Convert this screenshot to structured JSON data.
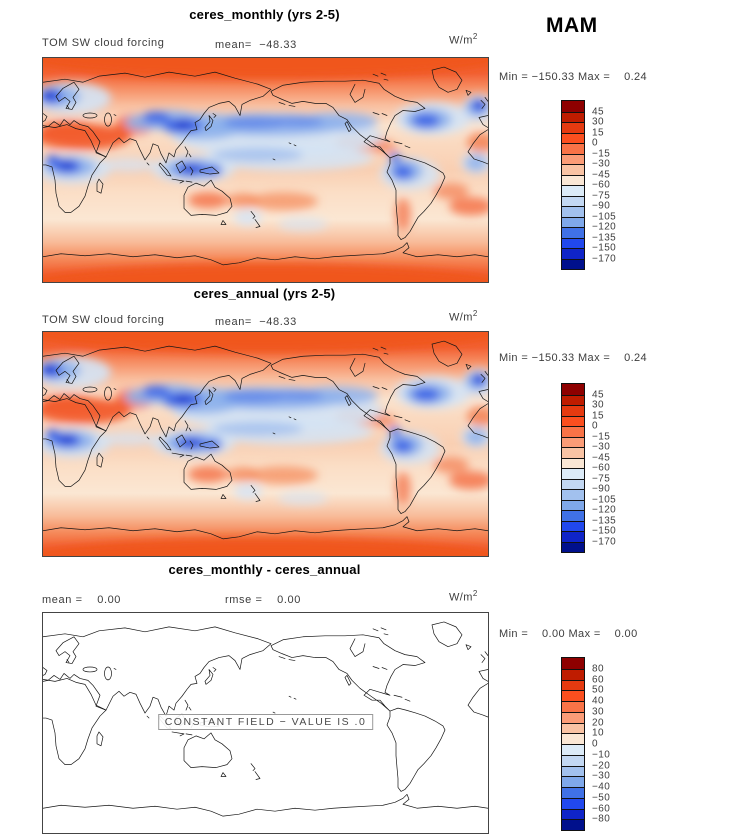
{
  "header": {
    "season": "MAM"
  },
  "units": {
    "base": "W/m",
    "exp": "2"
  },
  "palette": {
    "colors": [
      "#8e0000",
      "#bf1c00",
      "#e53a10",
      "#fb4f1f",
      "#f97347",
      "#fb9c77",
      "#f9c3a4",
      "#fae7d5",
      "#dcebf8",
      "#c3d8f3",
      "#a2c1ee",
      "#7fa8ea",
      "#4071e6",
      "#2148ee",
      "#0f24c8",
      "#00108c"
    ]
  },
  "panels": [
    {
      "title": "ceres_monthly (yrs 2-5)",
      "var_label": "TOM SW cloud forcing",
      "mean_text": "mean=  −48.33",
      "minmax": "Min = −150.33 Max =    0.24"
    },
    {
      "title": "ceres_annual (yrs 2-5)",
      "var_label": "TOM SW cloud forcing",
      "mean_text": "mean=  −48.33",
      "minmax": "Min = −150.33 Max =    0.24"
    },
    {
      "title": "ceres_monthly - ceres_annual",
      "mean_text": "mean =    0.00",
      "rmse_text": "rmse =    0.00",
      "minmax": "Min =    0.00 Max =    0.00",
      "note": "CONSTANT FIELD − VALUE IS .0"
    }
  ],
  "colorbars": [
    {
      "labels": [
        "45",
        "30",
        "15",
        "0",
        "−15",
        "−30",
        "−45",
        "−60",
        "−75",
        "−90",
        "−105",
        "−120",
        "−135",
        "−150",
        "−170"
      ]
    },
    {
      "labels": [
        "45",
        "30",
        "15",
        "0",
        "−15",
        "−30",
        "−45",
        "−60",
        "−75",
        "−90",
        "−105",
        "−120",
        "−135",
        "−150",
        "−170"
      ]
    },
    {
      "labels": [
        "80",
        "60",
        "50",
        "40",
        "30",
        "20",
        "10",
        "0",
        "−10",
        "−20",
        "−30",
        "−40",
        "−50",
        "−60",
        "−80"
      ]
    }
  ],
  "chart_data": [
    {
      "type": "heatmap",
      "title": "ceres_monthly (yrs 2-5)",
      "variable": "TOM SW cloud forcing",
      "season": "MAM",
      "units": "W/m^2",
      "projection": "global lat-lon map, Pacific-centered (0-360E)",
      "mean": -48.33,
      "min": -150.33,
      "max": 0.24,
      "contour_levels": [
        45,
        30,
        15,
        0,
        -15,
        -30,
        -45,
        -60,
        -75,
        -90,
        -105,
        -120,
        -135,
        -150,
        -170
      ],
      "colormap": "blue-red diverging, 16 bins"
    },
    {
      "type": "heatmap",
      "title": "ceres_annual (yrs 2-5)",
      "variable": "TOM SW cloud forcing",
      "season": "MAM",
      "units": "W/m^2",
      "projection": "global lat-lon map, Pacific-centered (0-360E)",
      "mean": -48.33,
      "min": -150.33,
      "max": 0.24,
      "contour_levels": [
        45,
        30,
        15,
        0,
        -15,
        -30,
        -45,
        -60,
        -75,
        -90,
        -105,
        -120,
        -135,
        -150,
        -170
      ],
      "colormap": "blue-red diverging, 16 bins"
    },
    {
      "type": "heatmap",
      "title": "ceres_monthly - ceres_annual",
      "units": "W/m^2",
      "projection": "global lat-lon map, Pacific-centered (0-360E)",
      "mean": 0.0,
      "rmse": 0.0,
      "min": 0.0,
      "max": 0.0,
      "contour_levels": [
        80,
        60,
        50,
        40,
        30,
        20,
        10,
        0,
        -10,
        -20,
        -30,
        -40,
        -50,
        -60,
        -80
      ],
      "note": "CONSTANT FIELD - VALUE IS .0 (blank map, coastlines only)"
    }
  ]
}
